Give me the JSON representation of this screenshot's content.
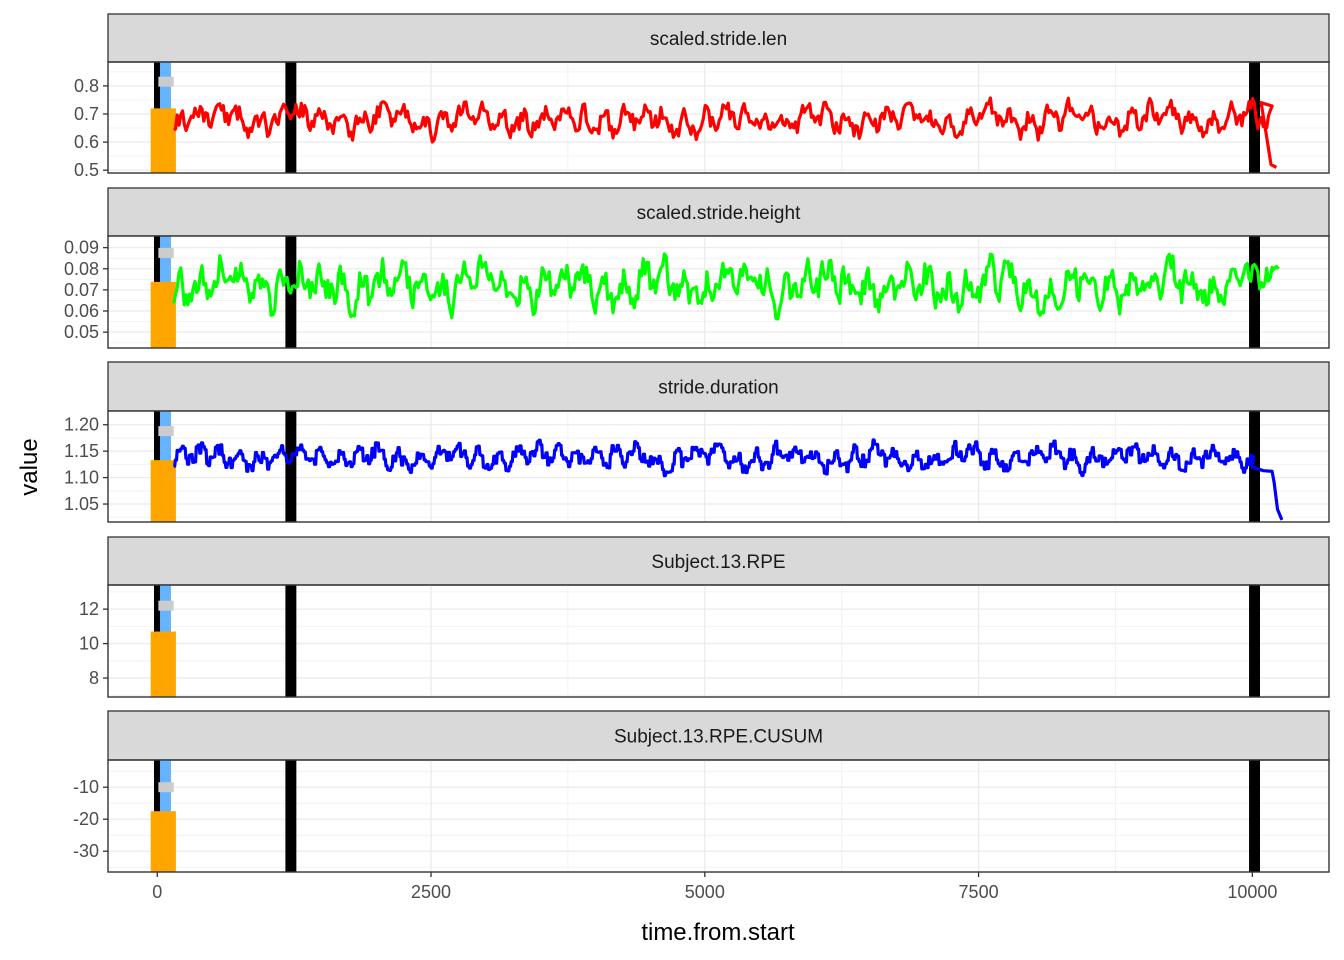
{
  "chart_data": {
    "type": "line",
    "facet_layout": "rows",
    "grid": true,
    "xlabel": "time.from.start",
    "ylabel": "value",
    "xlim": [
      -450,
      10700
    ],
    "x_ticks": [
      0,
      2500,
      5000,
      7500,
      10000
    ],
    "x_tick_labels": [
      "0",
      "2500",
      "5000",
      "7500",
      "10000"
    ],
    "vertical_markers": [
      {
        "x": 0,
        "color": "#000000",
        "width_data": 60
      },
      {
        "x": 1220,
        "color": "#000000",
        "width_data": 100
      },
      {
        "x": 10020,
        "color": "#000000",
        "width_data": 100
      },
      {
        "x": 75,
        "color": "#66b3ff",
        "width_data": 100
      }
    ],
    "orange_bar": {
      "x0": -60,
      "x1": 170,
      "color": "#ffa500"
    },
    "grey_marker": {
      "x0": 10,
      "x1": 150,
      "color": "#cccccc"
    },
    "facets": [
      {
        "strip": "scaled.stride.len",
        "color": "#ff0000",
        "ylim": [
          0.49,
          0.885
        ],
        "y_ticks": [
          0.5,
          0.6,
          0.7,
          0.8
        ],
        "y_tick_labels": [
          "0.5",
          "0.6",
          "0.7",
          "0.8"
        ],
        "orange_top": 0.72,
        "grey_y": 0.815,
        "mean": 0.68,
        "spread": 0.16,
        "x_start": 150,
        "x_end": 10180,
        "tail": [
          [
            10080,
            0.74
          ],
          [
            10130,
            0.62
          ],
          [
            10170,
            0.52
          ],
          [
            10220,
            0.51
          ]
        ],
        "seed": 11
      },
      {
        "strip": "scaled.stride.height",
        "color": "#00ff00",
        "ylim": [
          0.0425,
          0.0955
        ],
        "y_ticks": [
          0.05,
          0.06,
          0.07,
          0.08,
          0.09
        ],
        "y_tick_labels": [
          "0.05",
          "0.06",
          "0.07",
          "0.08",
          "0.09"
        ],
        "orange_top": 0.0738,
        "grey_y": 0.0875,
        "mean": 0.072,
        "spread": 0.032,
        "x_start": 150,
        "x_end": 10180,
        "tail": [
          [
            10180,
            0.079
          ],
          [
            10220,
            0.081
          ],
          [
            10240,
            0.08
          ]
        ],
        "seed": 23
      },
      {
        "strip": "stride.duration",
        "color": "#0000ff",
        "ylim": [
          1.016,
          1.226
        ],
        "y_ticks": [
          1.05,
          1.1,
          1.15,
          1.2
        ],
        "y_tick_labels": [
          "1.05",
          "1.10",
          "1.15",
          "1.20"
        ],
        "orange_top": 1.133,
        "grey_y": 1.188,
        "mean": 1.138,
        "spread": 0.07,
        "x_start": 150,
        "x_end": 10000,
        "tail": [
          [
            10000,
            1.12
          ],
          [
            10100,
            1.113
          ],
          [
            10180,
            1.112
          ],
          [
            10200,
            1.09
          ],
          [
            10230,
            1.04
          ],
          [
            10260,
            1.025
          ],
          [
            10270,
            1.02
          ]
        ],
        "seed": 37
      },
      {
        "strip": "Subject.13.RPE",
        "color": "#000000",
        "ylim": [
          6.9,
          13.4
        ],
        "y_ticks": [
          8,
          10,
          12
        ],
        "y_tick_labels": [
          "8",
          "10",
          "12"
        ],
        "orange_top": 10.7,
        "grey_y": 12.2,
        "mean": null,
        "spread": null,
        "tail": [],
        "seed": 0
      },
      {
        "strip": "Subject.13.RPE.CUSUM",
        "color": "#000000",
        "ylim": [
          -36.5,
          -1.5
        ],
        "y_ticks": [
          -30,
          -20,
          -10
        ],
        "y_tick_labels": [
          "-30",
          "-20",
          "-10"
        ],
        "orange_top": -17.5,
        "grey_y": -10,
        "mean": null,
        "spread": null,
        "tail": [],
        "seed": 0
      }
    ]
  }
}
